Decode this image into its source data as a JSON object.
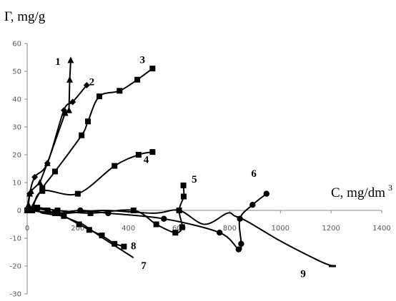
{
  "chart_data": {
    "type": "scatter",
    "title": "",
    "xlabel": "C, mg/dm3",
    "ylabel": "Γ, mg/g",
    "xlim": [
      0,
      1400
    ],
    "ylim": [
      -30,
      60
    ],
    "x_ticks": [
      0,
      200,
      400,
      600,
      800,
      1000,
      1200,
      1400
    ],
    "y_ticks": [
      -30,
      -20,
      -10,
      0,
      10,
      20,
      30,
      40,
      50,
      60
    ],
    "grid": false,
    "legend": "none",
    "series": [
      {
        "name": "1",
        "marker": "triangle",
        "smooth": false,
        "points": [
          [
            0,
            0
          ],
          [
            5,
            2
          ],
          [
            10,
            6
          ],
          [
            15,
            7
          ],
          [
            50,
            10
          ],
          [
            80,
            17
          ],
          [
            150,
            35
          ],
          [
            165,
            36
          ],
          [
            168,
            47
          ],
          [
            172,
            54
          ]
        ]
      },
      {
        "name": "2",
        "marker": "diamond",
        "smooth": true,
        "points": [
          [
            0,
            0
          ],
          [
            10,
            6
          ],
          [
            30,
            12
          ],
          [
            80,
            17
          ],
          [
            145,
            36
          ],
          [
            180,
            39
          ],
          [
            235,
            45
          ]
        ]
      },
      {
        "name": "3",
        "marker": "square",
        "smooth": true,
        "points": [
          [
            10,
            0
          ],
          [
            60,
            8
          ],
          [
            110,
            14
          ],
          [
            215,
            27
          ],
          [
            240,
            32
          ],
          [
            285,
            41
          ],
          [
            365,
            43
          ],
          [
            435,
            47
          ],
          [
            495,
            51
          ]
        ]
      },
      {
        "name": "4",
        "marker": "square",
        "smooth": true,
        "points": [
          [
            20,
            0
          ],
          [
            60,
            7
          ],
          [
            200,
            6
          ],
          [
            345,
            16
          ],
          [
            440,
            20
          ],
          [
            495,
            21
          ]
        ]
      },
      {
        "name": "5",
        "marker": "square",
        "smooth": true,
        "points": [
          [
            0,
            0
          ],
          [
            40,
            1
          ],
          [
            120,
            0
          ],
          [
            250,
            -1
          ],
          [
            420,
            0
          ],
          [
            510,
            -5
          ],
          [
            585,
            -8
          ],
          [
            612,
            -6
          ],
          [
            600,
            0
          ],
          [
            618,
            5
          ],
          [
            617,
            9
          ]
        ]
      },
      {
        "name": "6",
        "marker": "circle",
        "smooth": true,
        "points": [
          [
            15,
            0
          ],
          [
            120,
            -1
          ],
          [
            210,
            0
          ],
          [
            320,
            -1
          ],
          [
            540,
            -3
          ],
          [
            760,
            -8
          ],
          [
            835,
            -14
          ],
          [
            845,
            -12
          ],
          [
            840,
            -3
          ],
          [
            890,
            2
          ],
          [
            945,
            6
          ]
        ]
      },
      {
        "name": "7",
        "marker": "none",
        "smooth": false,
        "points": [
          [
            0,
            2
          ],
          [
            60,
            -1
          ],
          [
            140,
            -2
          ],
          [
            220,
            -5
          ],
          [
            300,
            -10
          ],
          [
            420,
            -17
          ]
        ]
      },
      {
        "name": "8",
        "marker": "square",
        "smooth": false,
        "points": [
          [
            0,
            0
          ],
          [
            30,
            1
          ],
          [
            80,
            0
          ],
          [
            110,
            -1
          ],
          [
            145,
            -2
          ],
          [
            205,
            -5
          ],
          [
            245,
            -7
          ],
          [
            295,
            -9
          ],
          [
            345,
            -12
          ],
          [
            382,
            -13
          ]
        ]
      },
      {
        "name": "9",
        "marker": "dash",
        "smooth": true,
        "points": [
          [
            0,
            0
          ],
          [
            150,
            -1
          ],
          [
            300,
            0
          ],
          [
            500,
            -1
          ],
          [
            600,
            0
          ],
          [
            700,
            -5
          ],
          [
            790,
            -1
          ],
          [
            820,
            -2
          ],
          [
            870,
            -4
          ],
          [
            1000,
            -11
          ],
          [
            1150,
            -18
          ],
          [
            1205,
            -20
          ]
        ]
      }
    ]
  }
}
